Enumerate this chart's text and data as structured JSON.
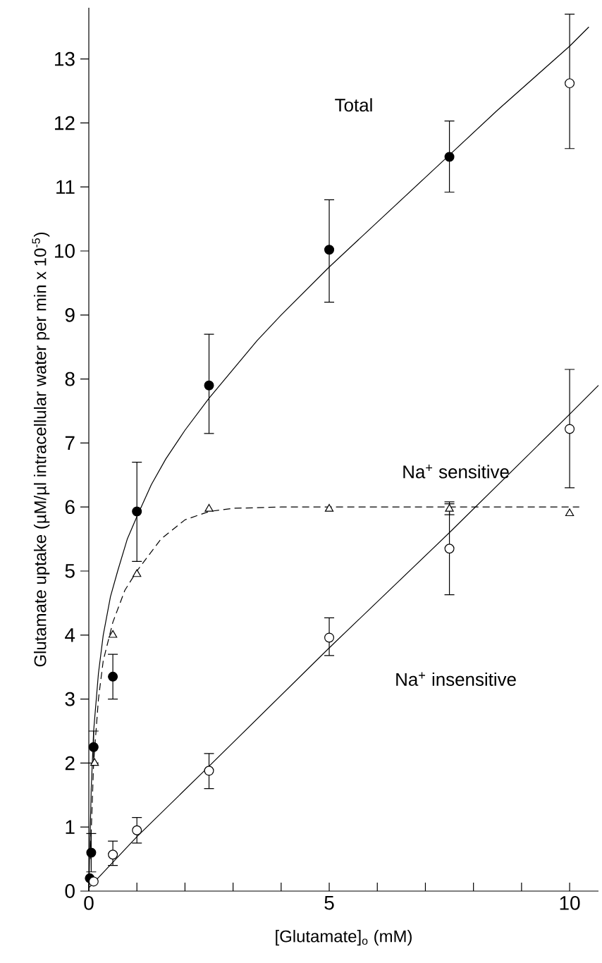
{
  "chart_data": {
    "type": "scatter",
    "xlabel": "[Glutamate]$_{o}$ (mM)",
    "ylabel": "Glutamate uptake (µM/µl intracellular water per min x 10$^{-5}$)",
    "xlim": [
      0,
      10.6
    ],
    "ylim": [
      0,
      13.8
    ],
    "xticks": [
      0,
      {
        "value": 1,
        "label": null
      },
      {
        "value": 2,
        "label": null
      },
      {
        "value": 3,
        "label": null
      },
      {
        "value": 4,
        "label": null
      },
      5,
      {
        "value": 6,
        "label": null
      },
      {
        "value": 7,
        "label": null
      },
      {
        "value": 8,
        "label": null
      },
      {
        "value": 9,
        "label": null
      },
      10
    ],
    "yticks": [
      0,
      1,
      2,
      3,
      4,
      5,
      6,
      7,
      8,
      9,
      10,
      11,
      12,
      13
    ],
    "series": [
      {
        "type": "line",
        "color": "#000000",
        "line_style": "solid",
        "x": [
          0,
          0.05,
          0.1,
          0.2,
          0.3,
          0.45,
          0.6,
          0.8,
          1,
          1.3,
          1.6,
          2,
          2.5,
          3,
          3.5,
          4,
          5,
          6,
          7,
          7.5,
          8.5,
          10,
          10.4
        ],
        "values": [
          0,
          1.6,
          2.5,
          3.4,
          4,
          4.6,
          5,
          5.5,
          5.85,
          6.35,
          6.75,
          7.2,
          7.7,
          8.15,
          8.6,
          9,
          9.75,
          10.45,
          11.15,
          11.5,
          12.2,
          13.2,
          13.5
        ]
      },
      {
        "type": "line",
        "color": "#000000",
        "line_style": "dashed",
        "x": [
          0.03,
          0.1,
          0.2,
          0.3,
          0.5,
          0.75,
          1,
          1.5,
          2,
          2.5,
          3,
          4,
          5,
          7.5,
          10.2
        ],
        "values": [
          0.5,
          2.0,
          3.0,
          3.6,
          4.2,
          4.7,
          5.0,
          5.5,
          5.8,
          5.93,
          5.98,
          6.0,
          6.0,
          6.0,
          6.0
        ]
      },
      {
        "type": "line",
        "color": "#000000",
        "line_style": "solid",
        "x": [
          0,
          0.5,
          1,
          2.5,
          5,
          7.5,
          10,
          10.6
        ],
        "values": [
          0.05,
          0.45,
          0.85,
          1.95,
          3.8,
          5.6,
          7.45,
          7.9
        ]
      },
      {
        "marker": "circle",
        "color": "#000000",
        "x": [
          0.02,
          0.05,
          0.1,
          0.5,
          1,
          2.5,
          5,
          7.5
        ],
        "values": [
          0.2,
          0.6,
          2.25,
          3.35,
          5.93,
          7.9,
          10.02,
          11.47
        ],
        "errors": [
          null,
          0.3,
          0.25,
          [
            3.0,
            3.7
          ],
          [
            5.15,
            6.7
          ],
          [
            7.15,
            8.7
          ],
          [
            9.2,
            10.8
          ],
          [
            10.92,
            12.03
          ]
        ]
      },
      {
        "marker": "circle",
        "color": "#ffffff",
        "x": [
          0.1,
          0.5,
          1,
          2.5,
          5,
          7.5,
          10
        ],
        "values": [
          0.15,
          0.57,
          0.95,
          1.88,
          3.96,
          5.35,
          7.22
        ],
        "errors": [
          null,
          [
            0.4,
            0.78
          ],
          [
            0.75,
            1.15
          ],
          [
            1.6,
            2.15
          ],
          [
            3.68,
            4.27
          ],
          [
            4.63,
            6.05
          ],
          [
            6.3,
            8.15
          ]
        ]
      },
      {
        "marker": "circle",
        "color": "#ffffff",
        "x": [
          10
        ],
        "values": [
          12.62
        ],
        "errors": [
          [
            11.6,
            13.7
          ]
        ]
      },
      {
        "marker": "triangle",
        "color": "#ffffff",
        "x": [
          0.12,
          0.5,
          1,
          2.5,
          5,
          7.5,
          10
        ],
        "values": [
          2.0,
          4.0,
          4.95,
          5.97,
          5.97,
          5.97,
          5.9
        ],
        "errors": [
          null,
          null,
          null,
          null,
          null,
          [
            5.88,
            6.08
          ],
          null
        ]
      }
    ],
    "annotations": [
      "Total",
      "Na$^{+}$ sensitive",
      "Na$^{+}$ insensitive"
    ]
  }
}
